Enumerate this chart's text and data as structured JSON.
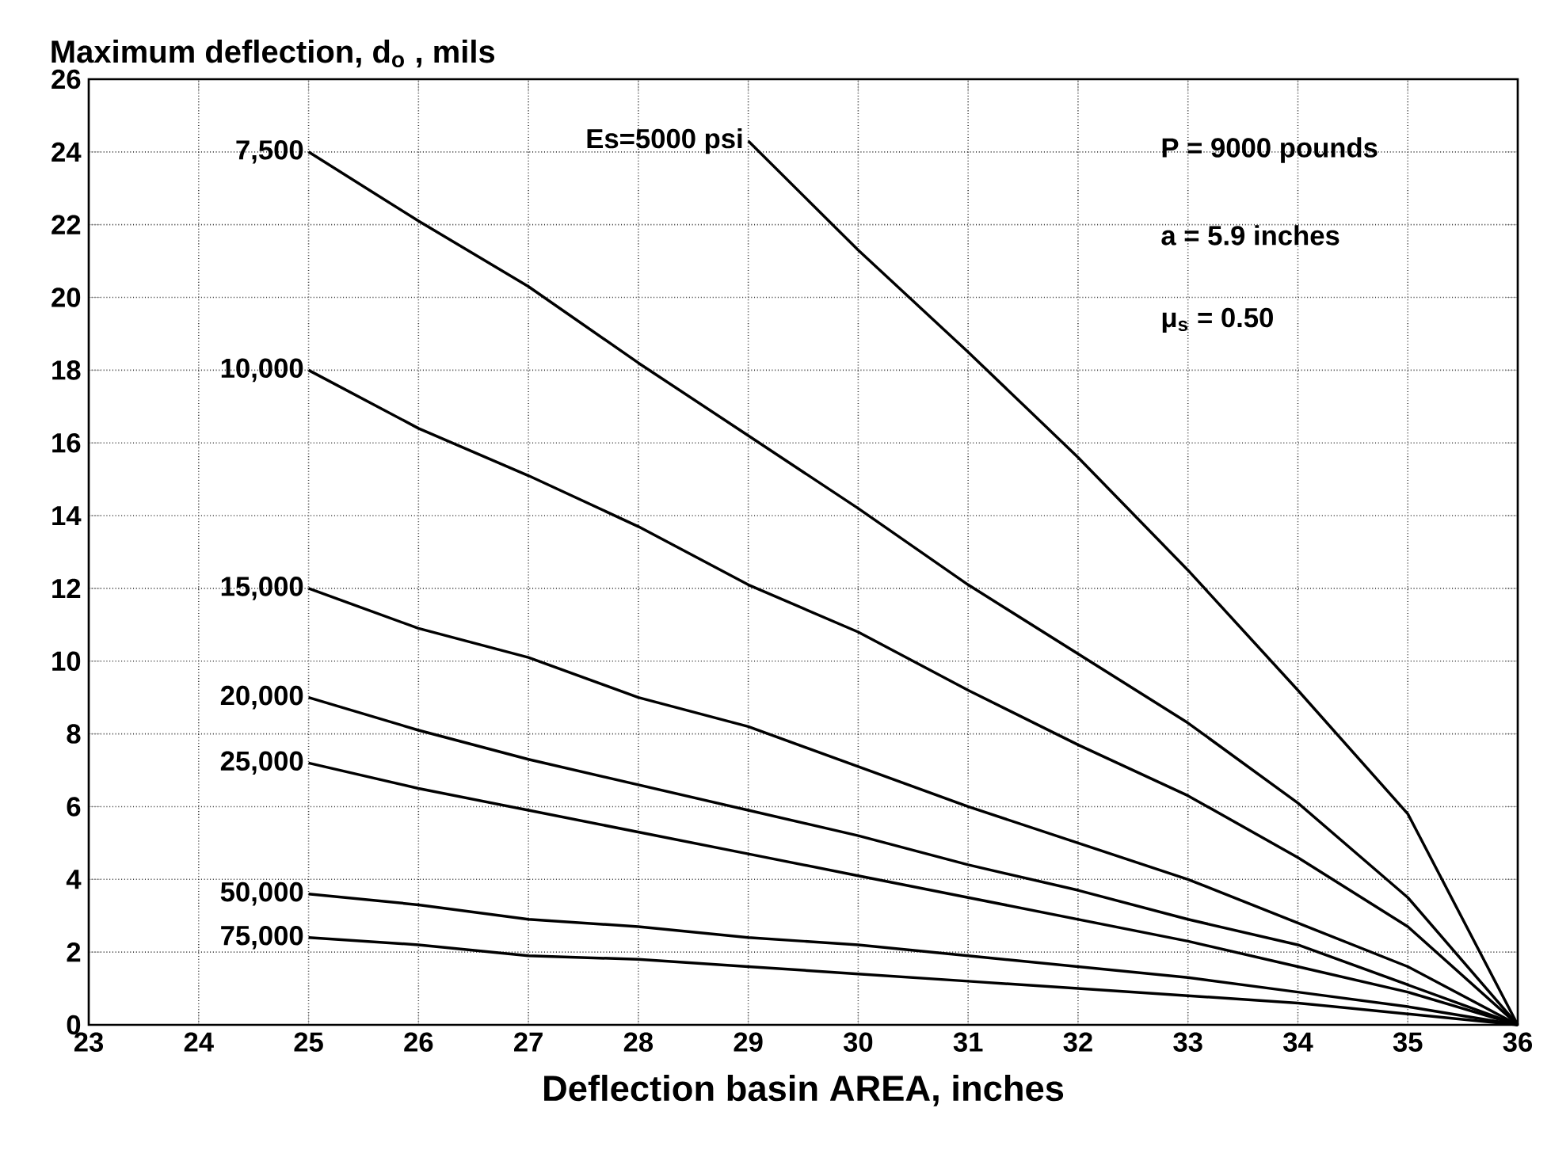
{
  "chart_data": {
    "type": "line",
    "xlabel": "Deflection basin AREA, inches",
    "ylabel": "Maximum deflection, d$_{o}$ , mils",
    "xlim": [
      23,
      36
    ],
    "ylim": [
      0,
      26
    ],
    "xticks": [
      23,
      24,
      25,
      26,
      27,
      28,
      29,
      30,
      31,
      32,
      33,
      34,
      35,
      36
    ],
    "yticks": [
      0,
      2,
      4,
      6,
      8,
      10,
      12,
      14,
      16,
      18,
      20,
      22,
      24,
      26
    ],
    "grid": true,
    "marker": "none",
    "line_style": "solid",
    "annotations": [
      "P = 9000 pounds",
      "a = 5.9 inches",
      "μ$_{s}$ = 0.50"
    ],
    "series": [
      {
        "name": "Es=5000 psi",
        "color": "#000000",
        "x": [
          29,
          30,
          31,
          32,
          33,
          34,
          35,
          36
        ],
        "values": [
          24.3,
          21.3,
          18.5,
          15.6,
          12.5,
          9.2,
          5.8,
          0
        ]
      },
      {
        "name": "7,500",
        "color": "#000000",
        "x": [
          25,
          26,
          27,
          28,
          29,
          30,
          31,
          32,
          33,
          34,
          35,
          36
        ],
        "values": [
          24,
          22.1,
          20.3,
          18.2,
          16.2,
          14.2,
          12.1,
          10.2,
          8.3,
          6.1,
          3.5,
          0
        ]
      },
      {
        "name": "10,000",
        "color": "#000000",
        "x": [
          25,
          26,
          27,
          28,
          29,
          30,
          31,
          32,
          33,
          34,
          35,
          36
        ],
        "values": [
          18,
          16.4,
          15.1,
          13.7,
          12.1,
          10.8,
          9.2,
          7.7,
          6.3,
          4.6,
          2.7,
          0
        ]
      },
      {
        "name": "15,000",
        "color": "#000000",
        "x": [
          25,
          26,
          27,
          28,
          29,
          30,
          31,
          32,
          33,
          34,
          35,
          36
        ],
        "values": [
          12,
          10.9,
          10.1,
          9.0,
          8.2,
          7.1,
          6.0,
          5.0,
          4.0,
          2.8,
          1.6,
          0
        ]
      },
      {
        "name": "20,000",
        "color": "#000000",
        "x": [
          25,
          26,
          27,
          28,
          29,
          30,
          31,
          32,
          33,
          34,
          35,
          36
        ],
        "values": [
          9,
          8.1,
          7.3,
          6.6,
          5.9,
          5.2,
          4.4,
          3.7,
          2.9,
          2.2,
          1.1,
          0
        ]
      },
      {
        "name": "25,000",
        "color": "#000000",
        "x": [
          25,
          26,
          27,
          28,
          29,
          30,
          31,
          32,
          33,
          34,
          35,
          36
        ],
        "values": [
          7.2,
          6.5,
          5.9,
          5.3,
          4.7,
          4.1,
          3.5,
          2.9,
          2.3,
          1.6,
          0.9,
          0
        ]
      },
      {
        "name": "50,000",
        "color": "#000000",
        "x": [
          25,
          26,
          27,
          28,
          29,
          30,
          31,
          32,
          33,
          34,
          35,
          36
        ],
        "values": [
          3.6,
          3.3,
          2.9,
          2.7,
          2.4,
          2.2,
          1.9,
          1.6,
          1.3,
          0.9,
          0.5,
          0
        ]
      },
      {
        "name": "75,000",
        "color": "#000000",
        "x": [
          25,
          26,
          27,
          28,
          29,
          30,
          31,
          32,
          33,
          34,
          35,
          36
        ],
        "values": [
          2.4,
          2.2,
          1.9,
          1.8,
          1.6,
          1.4,
          1.2,
          1.0,
          0.8,
          0.6,
          0.3,
          0
        ]
      }
    ]
  }
}
